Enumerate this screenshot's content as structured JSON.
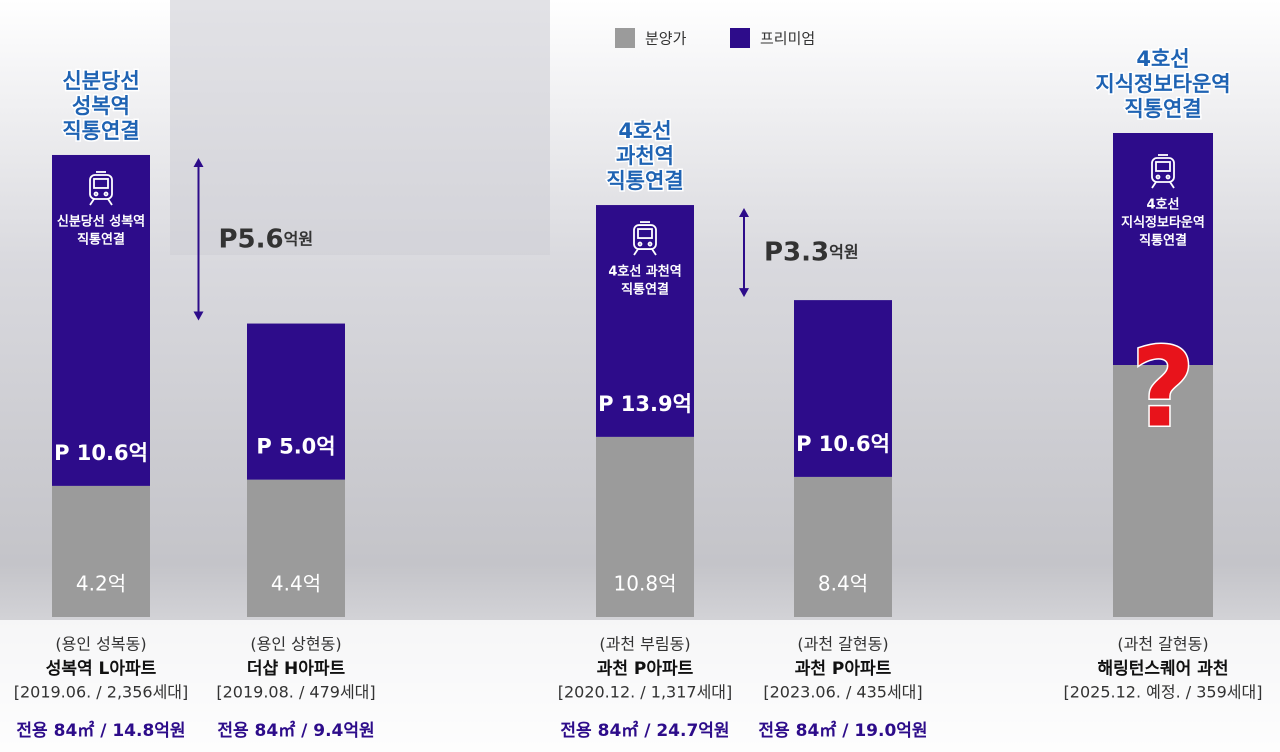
{
  "chart_data": [
    {
      "type": "bar",
      "stacked": true,
      "ylim": [
        0,
        15.6
      ],
      "categories": [
        "성복역 L아파트",
        "더샵 H아파트"
      ],
      "locations": [
        "(용인 성복동)",
        "(용인 상현동)"
      ],
      "details": [
        "[2019.06. / 2,356세대]",
        "[2019.08. / 479세대]"
      ],
      "prices": [
        "전용 84㎡ / 14.8억원",
        "전용 84㎡ / 9.4억원"
      ],
      "series": [
        {
          "name": "분양가",
          "color": "#9b9b9b",
          "values": [
            4.2,
            4.4
          ],
          "value_labels": [
            "4.2억",
            "4.4억"
          ]
        },
        {
          "name": "프리미엄",
          "color": "#2d0c8a",
          "values": [
            10.6,
            5.0
          ],
          "value_labels": [
            "P 10.6억",
            "P 5.0억"
          ]
        }
      ],
      "station": {
        "label": [
          "신분당선",
          "성복역",
          "직통연결"
        ],
        "note": [
          "신분당선 성복역",
          "직통연결"
        ]
      },
      "annotation": {
        "value": "P5.6",
        "unit": "억원"
      }
    },
    {
      "type": "bar",
      "stacked": true,
      "ylim": [
        0,
        29.2
      ],
      "categories": [
        "과천 P아파트",
        "과천 P아파트"
      ],
      "locations": [
        "(과천 부림동)",
        "(과천 갈현동)"
      ],
      "details": [
        "[2020.12. / 1,317세대]",
        "[2023.06. / 435세대]"
      ],
      "prices": [
        "전용 84㎡ / 24.7억원",
        "전용 84㎡ / 19.0억원"
      ],
      "series": [
        {
          "name": "분양가",
          "color": "#9b9b9b",
          "values": [
            10.8,
            8.4
          ],
          "value_labels": [
            "10.8억",
            "8.4억"
          ]
        },
        {
          "name": "프리미엄",
          "color": "#2d0c8a",
          "values": [
            13.9,
            10.6
          ],
          "value_labels": [
            "P 13.9억",
            "P 10.6억"
          ]
        }
      ],
      "station": {
        "label": [
          "4호선",
          "과천역",
          "직통연결"
        ],
        "note": [
          "4호선 과천역",
          "직통연결"
        ]
      },
      "annotation": {
        "value": "P3.3",
        "unit": "억원"
      }
    },
    {
      "type": "placeholder",
      "categories": [
        "해링턴스퀘어 과천"
      ],
      "locations": [
        "(과천 갈현동)"
      ],
      "details": [
        "[2025.12. 예정. / 359세대]"
      ],
      "station": {
        "label": [
          "4호선",
          "지식정보타운역",
          "직통연결"
        ],
        "note": [
          "4호선",
          "지식정보타운역",
          "직통연결"
        ]
      },
      "unknown": "?"
    }
  ]
}
